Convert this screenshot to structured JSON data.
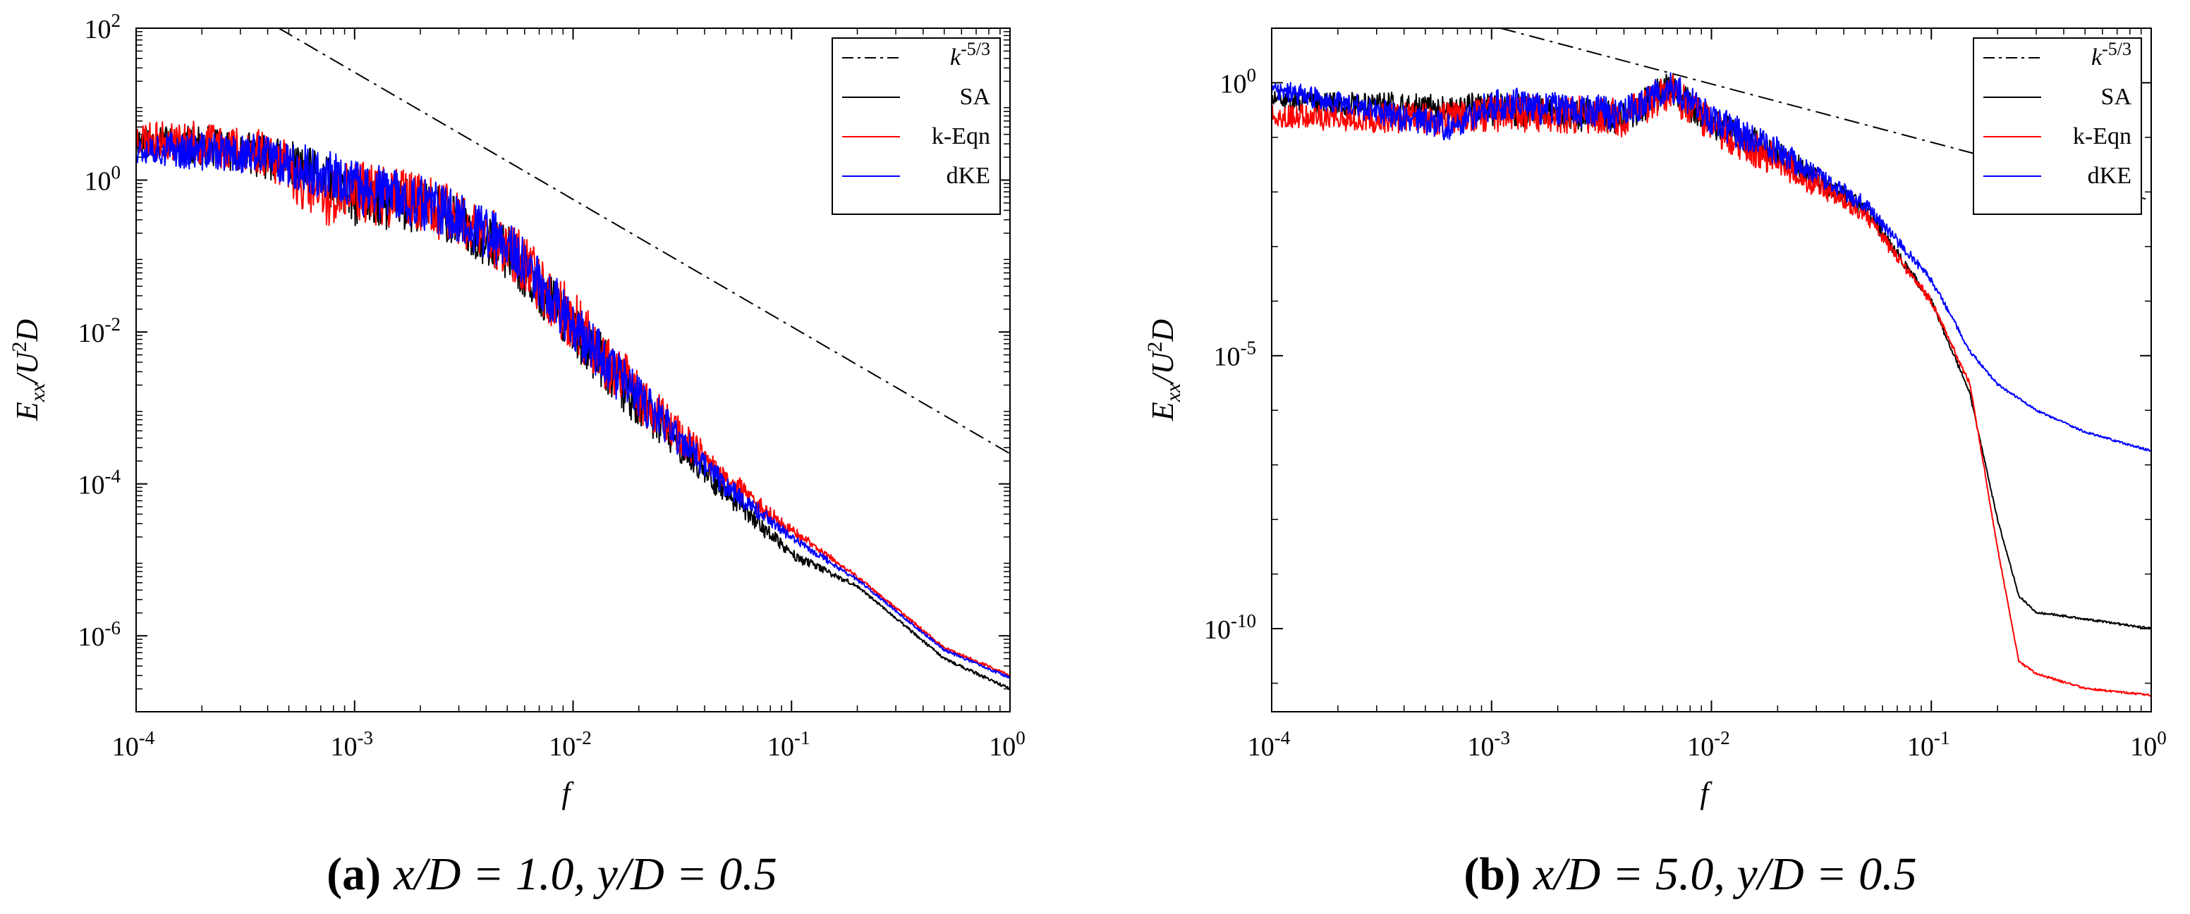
{
  "chart_data": [
    {
      "type": "line",
      "scale": "log-log",
      "xlabel": "f",
      "ylabel": "Exx/U2D",
      "xlim": [
        0.0001,
        1
      ],
      "ylim": [
        1e-07,
        100
      ],
      "xticks": [
        0.0001,
        0.001,
        0.01,
        0.1,
        1
      ],
      "xtick_labels": [
        {
          "base": "10",
          "exp": "-4"
        },
        {
          "base": "10",
          "exp": "-3"
        },
        {
          "base": "10",
          "exp": "-2"
        },
        {
          "base": "10",
          "exp": "-1"
        },
        {
          "base": "10",
          "exp": "0"
        }
      ],
      "yticks": [
        1e-06,
        0.0001,
        0.01,
        1,
        100
      ],
      "ytick_labels": [
        {
          "base": "10",
          "exp": "-6"
        },
        {
          "base": "10",
          "exp": "-4"
        },
        {
          "base": "10",
          "exp": "-2"
        },
        {
          "base": "10",
          "exp": "0"
        },
        {
          "base": "10",
          "exp": "2"
        }
      ],
      "legend_position": "top-right",
      "caption": {
        "letter": "(a)",
        "text": "x/D = 1.0, y/D = 0.5"
      },
      "series": [
        {
          "name": "k-5/3",
          "color": "#000000",
          "dash": "dashdot",
          "x": [
            0.00045,
            1
          ],
          "y": [
            100,
            0.00025
          ]
        },
        {
          "name": "SA",
          "color": "#000000",
          "noise": 0.35,
          "seed": 11,
          "x": [
            0.0001,
            0.0002,
            0.0004,
            0.0007,
            0.001,
            0.002,
            0.003,
            0.005,
            0.01,
            0.02,
            0.05,
            0.1,
            0.2,
            0.5,
            1
          ],
          "y": [
            3.5,
            3.0,
            2.2,
            1.2,
            0.6,
            0.5,
            0.3,
            0.12,
            0.012,
            0.0012,
            8e-05,
            1.2e-05,
            4.5e-06,
            5e-07,
            2e-07
          ]
        },
        {
          "name": "k-Eqn",
          "color": "#ff0000",
          "noise": 0.4,
          "seed": 23,
          "x": [
            0.0001,
            0.0002,
            0.0004,
            0.0007,
            0.001,
            0.002,
            0.003,
            0.005,
            0.01,
            0.02,
            0.05,
            0.1,
            0.2,
            0.5,
            1
          ],
          "y": [
            3.8,
            3.2,
            2.6,
            0.6,
            0.8,
            0.55,
            0.35,
            0.15,
            0.015,
            0.0015,
            0.00012,
            2.5e-05,
            6e-06,
            7e-07,
            3e-07
          ]
        },
        {
          "name": "dKE",
          "color": "#0000ff",
          "noise": 0.35,
          "seed": 37,
          "x": [
            0.0001,
            0.0002,
            0.0004,
            0.0007,
            0.001,
            0.002,
            0.003,
            0.005,
            0.01,
            0.02,
            0.05,
            0.1,
            0.2,
            0.5,
            1
          ],
          "y": [
            2.8,
            2.5,
            2.2,
            1.3,
            0.9,
            0.55,
            0.35,
            0.15,
            0.014,
            0.0014,
            0.0001,
            2e-05,
            5.5e-06,
            6.5e-07,
            2.8e-07
          ]
        }
      ]
    },
    {
      "type": "line",
      "scale": "log-log",
      "xlabel": "f",
      "ylabel": "Exx/U2D",
      "xlim": [
        0.0001,
        1
      ],
      "ylim": [
        3e-12,
        10
      ],
      "xticks": [
        0.0001,
        0.001,
        0.01,
        0.1,
        1
      ],
      "xtick_labels": [
        {
          "base": "10",
          "exp": "-4"
        },
        {
          "base": "10",
          "exp": "-3"
        },
        {
          "base": "10",
          "exp": "-2"
        },
        {
          "base": "10",
          "exp": "-1"
        },
        {
          "base": "10",
          "exp": "0"
        }
      ],
      "yticks": [
        1e-10,
        1e-05,
        1
      ],
      "ytick_labels": [
        {
          "base": "10",
          "exp": "-10"
        },
        {
          "base": "10",
          "exp": "-5"
        },
        {
          "base": "10",
          "exp": "0"
        }
      ],
      "legend_position": "top-right",
      "caption": {
        "letter": "(b)",
        "text": "x/D = 5.0, y/D = 0.5"
      },
      "series": [
        {
          "name": "k-5/3",
          "color": "#000000",
          "dash": "dashdot",
          "x": [
            0.0011,
            1
          ],
          "y": [
            10,
            0.007
          ]
        },
        {
          "name": "SA",
          "color": "#000000",
          "noise": 0.3,
          "seed": 51,
          "x": [
            0.0001,
            0.0007,
            0.001,
            0.002,
            0.004,
            0.0065,
            0.01,
            0.02,
            0.05,
            0.1,
            0.15,
            0.2,
            0.25,
            0.3,
            0.5,
            1
          ],
          "y": [
            0.5,
            0.35,
            0.35,
            0.3,
            0.25,
            0.9,
            0.2,
            0.05,
            0.005,
            0.0001,
            2e-06,
            1e-08,
            4e-10,
            2e-10,
            1.5e-10,
            1e-10
          ]
        },
        {
          "name": "k-Eqn",
          "color": "#ff0000",
          "noise": 0.35,
          "seed": 63,
          "x": [
            0.0001,
            0.0007,
            0.001,
            0.002,
            0.004,
            0.0065,
            0.01,
            0.02,
            0.05,
            0.1,
            0.15,
            0.2,
            0.25,
            0.3,
            0.5,
            1
          ],
          "y": [
            0.25,
            0.25,
            0.3,
            0.28,
            0.25,
            0.8,
            0.18,
            0.04,
            0.004,
            0.0001,
            3e-06,
            3e-09,
            2.5e-11,
            1.5e-11,
            8e-12,
            6e-12
          ]
        },
        {
          "name": "dKE",
          "color": "#0000ff",
          "noise": 0.3,
          "seed": 77,
          "x": [
            0.0001,
            0.0007,
            0.001,
            0.002,
            0.004,
            0.0065,
            0.01,
            0.02,
            0.05,
            0.1,
            0.15,
            0.2,
            0.3,
            0.5,
            1
          ],
          "y": [
            0.8,
            0.15,
            0.45,
            0.35,
            0.3,
            1.0,
            0.22,
            0.06,
            0.006,
            0.00025,
            1.2e-05,
            3e-06,
            1e-06,
            4e-07,
            1.8e-07
          ]
        }
      ]
    }
  ]
}
